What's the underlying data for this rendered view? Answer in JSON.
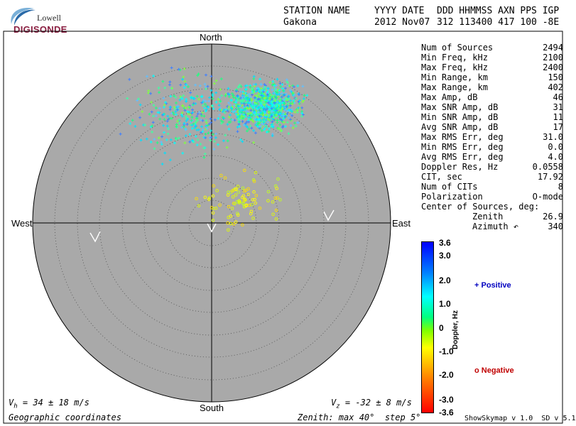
{
  "logo": {
    "top_text": "Lowell",
    "main_text": "DIGISONDE",
    "icon": "lowell-swoosh-icon"
  },
  "header": {
    "col_labels": [
      "STATION NAME",
      "YYYY DATE",
      "DDD HHMMSS AXN PPS IGP"
    ],
    "station": "Gakona",
    "date": "2012 Nov07",
    "values": "312 113400 417 100 -8E"
  },
  "skymap": {
    "north": "North",
    "south": "South",
    "east": "East",
    "west": "West",
    "colors": {
      "disk": "#a9a9a9",
      "ring": "#505050"
    }
  },
  "stats": [
    {
      "label": "Num of Sources",
      "value": "2494"
    },
    {
      "label": "Min Freq, kHz",
      "value": "2100"
    },
    {
      "label": "Max Freq, kHz",
      "value": "2400"
    },
    {
      "label": "Min Range, km",
      "value": "150"
    },
    {
      "label": "Max Range, km",
      "value": "402"
    },
    {
      "label": "Max Amp, dB",
      "value": "46"
    },
    {
      "label": "Max SNR Amp, dB",
      "value": "31"
    },
    {
      "label": "Min SNR Amp, dB",
      "value": "11"
    },
    {
      "label": "Avg SNR Amp, dB",
      "value": "17"
    },
    {
      "label": "Max RMS Err, deg",
      "value": "31.0"
    },
    {
      "label": "Min RMS Err, deg",
      "value": "0.0"
    },
    {
      "label": "Avg RMS Err, deg",
      "value": "4.0"
    },
    {
      "label": "Doppler Res, Hz",
      "value": "0.0558"
    },
    {
      "label": "CIT, sec",
      "value": "17.92"
    },
    {
      "label": "Num of CITs",
      "value": "8"
    },
    {
      "label": "Polarization",
      "value": "O-mode"
    },
    {
      "label": "Center of Sources, deg:",
      "value": ""
    },
    {
      "label": "Zenith",
      "value": "26.9",
      "indent": true
    },
    {
      "label": "Azimuth ↶",
      "value": "340",
      "indent": true
    }
  ],
  "colorbar": {
    "ticks": [
      "3.6",
      "3.0",
      "2.0",
      "1.0",
      "0",
      "-1.0",
      "-2.0",
      "-3.0",
      "-3.6"
    ],
    "label": "Doppler, Hz"
  },
  "legend": {
    "positive": "+ Positive",
    "negative": "o Negative",
    "positive_color": "#0000c0",
    "negative_color": "#c00000"
  },
  "footer": {
    "vh": "V",
    "vh_sub": "h",
    "vh_rest": " = 34 ± 18 m/s",
    "vz": "V",
    "vz_sub": "z",
    "vz_rest": " = -32 ± 8 m/s",
    "coords": "Geographic coordinates",
    "zenith": "Zenith: max 40°  step 5°",
    "version": "ShowSkymap v 1.0  SD v 5.1"
  }
}
